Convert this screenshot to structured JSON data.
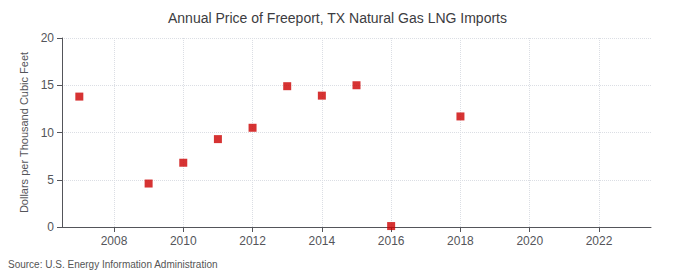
{
  "chart_data": {
    "type": "scatter",
    "title": "Annual Price of Freeport, TX Natural Gas LNG Imports",
    "y_label": "Dollars per Thousand Cubic Feet",
    "annotation": "Source: U.S. Energy Information Administration",
    "x": [
      2007,
      2009,
      2010,
      2011,
      2012,
      2013,
      2014,
      2015,
      2016,
      2018
    ],
    "values": [
      13.8,
      4.6,
      6.8,
      9.3,
      10.5,
      14.9,
      13.9,
      15.0,
      0.1,
      11.7
    ],
    "color": "#cc0000",
    "marker": "square",
    "xlim": [
      2006.5,
      2023.5
    ],
    "xticks": [
      2008,
      2010,
      2012,
      2014,
      2016,
      2018,
      2020,
      2022
    ],
    "ylim": [
      0,
      20
    ],
    "yticks": [
      0,
      5,
      10,
      15,
      20
    ],
    "grid": true
  }
}
